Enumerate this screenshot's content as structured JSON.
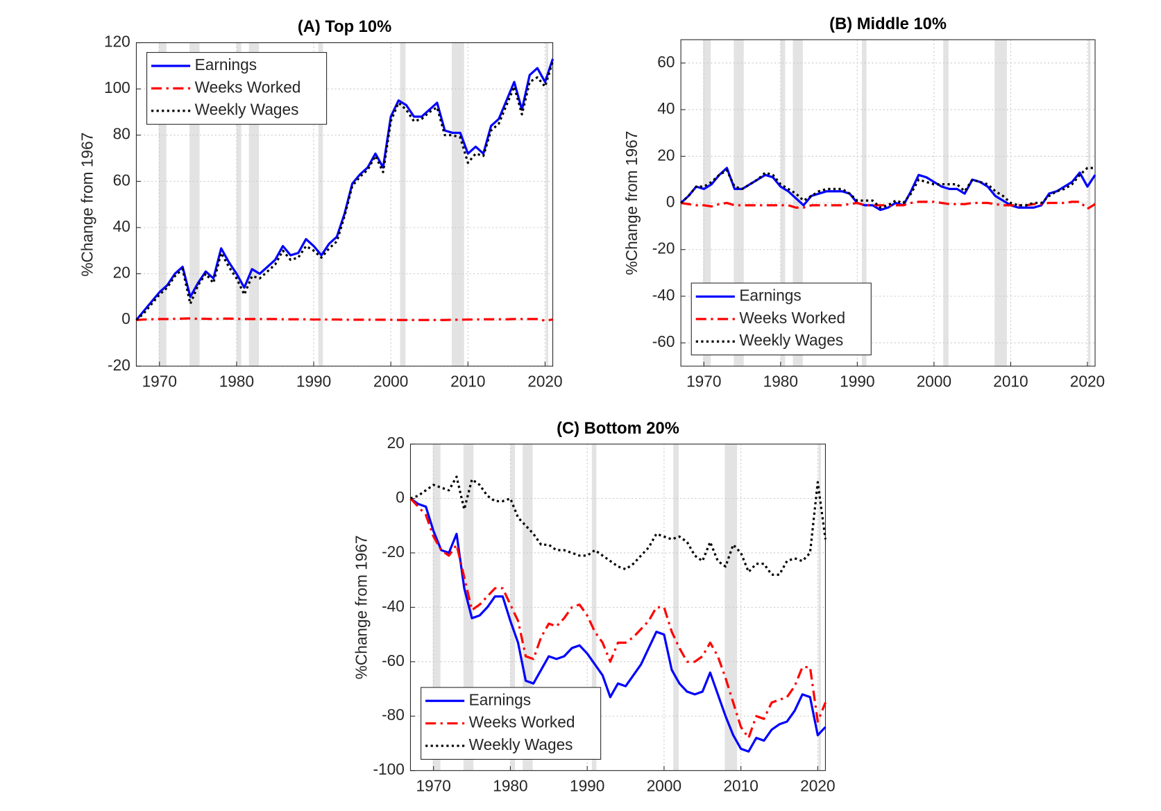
{
  "chart_data": [
    {
      "type": "line",
      "title": "(A) Top 10%",
      "y_label": "%Change from 1967",
      "x": [
        1967,
        1968,
        1969,
        1970,
        1971,
        1972,
        1973,
        1974,
        1975,
        1976,
        1977,
        1978,
        1979,
        1980,
        1981,
        1982,
        1983,
        1984,
        1985,
        1986,
        1987,
        1988,
        1989,
        1990,
        1991,
        1992,
        1993,
        1994,
        1995,
        1996,
        1997,
        1998,
        1999,
        2000,
        2001,
        2002,
        2003,
        2004,
        2005,
        2006,
        2007,
        2008,
        2009,
        2010,
        2011,
        2012,
        2013,
        2014,
        2015,
        2016,
        2017,
        2018,
        2019,
        2020,
        2021
      ],
      "series": [
        {
          "name": "Earnings",
          "color": "#0000ff",
          "style": "solid",
          "values": [
            0,
            4,
            8,
            12,
            15,
            20,
            23,
            10,
            16,
            21,
            18,
            31,
            25,
            20,
            14,
            22,
            20,
            23,
            26,
            32,
            28,
            29,
            35,
            32,
            28,
            33,
            36,
            46,
            59,
            63,
            66,
            72,
            66,
            88,
            95,
            93,
            88,
            88,
            91,
            94,
            82,
            81,
            81,
            72,
            75,
            72,
            84,
            87,
            95,
            103,
            91,
            106,
            109,
            103,
            113
          ]
        },
        {
          "name": "Weeks Worked",
          "color": "#ff0000",
          "style": "dashdot",
          "values": [
            0,
            0.2,
            0.3,
            0.4,
            0.4,
            0.5,
            0.6,
            0.7,
            0.5,
            0.5,
            0.4,
            0.6,
            0.6,
            0.5,
            0.4,
            0.4,
            0.4,
            0.4,
            0.4,
            0.3,
            0.3,
            0.3,
            0.3,
            0.2,
            0.2,
            0.2,
            0.2,
            0.1,
            0.1,
            0.1,
            0.1,
            0.1,
            0.1,
            0.1,
            0,
            0,
            0,
            0,
            0,
            0,
            0,
            0.1,
            0.1,
            0.2,
            0.2,
            0.3,
            0.3,
            0.3,
            0.3,
            0.4,
            0.4,
            0.4,
            0.4,
            -0.3,
            0.2
          ]
        },
        {
          "name": "Weekly Wages",
          "color": "#000000",
          "style": "dotted",
          "values": [
            0,
            3,
            7,
            11,
            14,
            19,
            22,
            7,
            15,
            20,
            16,
            29,
            23,
            18,
            11,
            19,
            18,
            21,
            24,
            30,
            26,
            27,
            32,
            30,
            27,
            31,
            34,
            45,
            58,
            62,
            65,
            71,
            64,
            86,
            94,
            91,
            86,
            87,
            90,
            92,
            80,
            80,
            79,
            68,
            72,
            71,
            82,
            85,
            93,
            101,
            89,
            103,
            105,
            101,
            112
          ]
        }
      ],
      "recessions": [
        [
          1969.9,
          1970.9
        ],
        [
          1973.9,
          1975.2
        ],
        [
          1980,
          1980.6
        ],
        [
          1981.6,
          1982.9
        ],
        [
          1990.6,
          1991.2
        ],
        [
          2001.2,
          2001.9
        ],
        [
          2007.9,
          2009.5
        ],
        [
          2020.1,
          2020.4
        ]
      ],
      "xlim": [
        1967,
        2021
      ],
      "xticks": [
        1970,
        1980,
        1990,
        2000,
        2010,
        2020
      ],
      "ylim": [
        -20,
        120
      ],
      "yticks": [
        -20,
        0,
        20,
        40,
        60,
        80,
        100,
        120
      ],
      "grid": true,
      "legend": "upper left"
    },
    {
      "type": "line",
      "title": "(B) Middle 10%",
      "y_label": "%Change from 1967",
      "x": [
        1967,
        1968,
        1969,
        1970,
        1971,
        1972,
        1973,
        1974,
        1975,
        1976,
        1977,
        1978,
        1979,
        1980,
        1981,
        1982,
        1983,
        1984,
        1985,
        1986,
        1987,
        1988,
        1989,
        1990,
        1991,
        1992,
        1993,
        1994,
        1995,
        1996,
        1997,
        1998,
        1999,
        2000,
        2001,
        2002,
        2003,
        2004,
        2005,
        2006,
        2007,
        2008,
        2009,
        2010,
        2011,
        2012,
        2013,
        2014,
        2015,
        2016,
        2017,
        2018,
        2019,
        2020,
        2021
      ],
      "series": [
        {
          "name": "Earnings",
          "color": "#0000ff",
          "style": "solid",
          "values": [
            0,
            3,
            7,
            6,
            8,
            12,
            15,
            6,
            6,
            8,
            10,
            12,
            11,
            7,
            5,
            2,
            -1,
            3,
            4,
            5,
            5,
            5,
            4,
            0,
            -1,
            -1,
            -3,
            -2,
            0,
            -1,
            5,
            12,
            11,
            9,
            7,
            6,
            6,
            4,
            10,
            9,
            7,
            3,
            1,
            -1,
            -2,
            -2,
            -2,
            -1,
            4,
            5,
            7,
            9,
            13,
            7,
            12
          ]
        },
        {
          "name": "Weeks Worked",
          "color": "#ff0000",
          "style": "dashdot",
          "values": [
            0,
            -0.5,
            -1,
            -1,
            -1.5,
            -0.5,
            0,
            -1,
            -1,
            -1,
            -1,
            -1,
            -1,
            -1,
            -1,
            -2,
            -2,
            -1,
            -1,
            -1,
            -1,
            -1,
            -0.5,
            0,
            -1,
            -1,
            -1,
            -1,
            -1,
            -1,
            0,
            0.5,
            0.5,
            0.5,
            0,
            -0.5,
            -0.5,
            -0.5,
            0,
            0,
            0,
            -0.5,
            -1,
            -1,
            -1,
            -1,
            -0.5,
            -0.5,
            0,
            0,
            0,
            0.5,
            0.5,
            -2.5,
            -0.5
          ]
        },
        {
          "name": "Weekly Wages",
          "color": "#000000",
          "style": "dotted",
          "values": [
            0,
            3,
            7,
            7,
            9,
            12,
            14,
            7,
            6,
            8,
            10,
            13,
            12,
            8,
            6,
            4,
            1,
            3,
            5,
            6,
            6,
            6,
            4,
            1,
            1,
            1,
            -2,
            -1,
            1,
            0,
            4,
            10,
            9,
            8,
            8,
            8,
            8,
            5,
            10,
            9,
            8,
            5,
            3,
            0,
            -1,
            -1,
            0,
            0,
            3,
            5,
            6,
            8,
            12,
            15,
            15
          ]
        }
      ],
      "recessions": [
        [
          1969.9,
          1970.9
        ],
        [
          1973.9,
          1975.2
        ],
        [
          1980,
          1980.6
        ],
        [
          1981.6,
          1982.9
        ],
        [
          1990.6,
          1991.2
        ],
        [
          2001.2,
          2001.9
        ],
        [
          2007.9,
          2009.5
        ],
        [
          2020.1,
          2020.4
        ]
      ],
      "xlim": [
        1967,
        2021
      ],
      "xticks": [
        1970,
        1980,
        1990,
        2000,
        2010,
        2020
      ],
      "ylim": [
        -70,
        70
      ],
      "yticks": [
        -60,
        -40,
        -20,
        0,
        20,
        40,
        60
      ],
      "grid": true,
      "legend": "lower left"
    },
    {
      "type": "line",
      "title": "(C) Bottom 20%",
      "y_label": "%Change from 1967",
      "x": [
        1967,
        1968,
        1969,
        1970,
        1971,
        1972,
        1973,
        1974,
        1975,
        1976,
        1977,
        1978,
        1979,
        1980,
        1981,
        1982,
        1983,
        1984,
        1985,
        1986,
        1987,
        1988,
        1989,
        1990,
        1991,
        1992,
        1993,
        1994,
        1995,
        1996,
        1997,
        1998,
        1999,
        2000,
        2001,
        2002,
        2003,
        2004,
        2005,
        2006,
        2007,
        2008,
        2009,
        2010,
        2011,
        2012,
        2013,
        2014,
        2015,
        2016,
        2017,
        2018,
        2019,
        2020,
        2021
      ],
      "series": [
        {
          "name": "Earnings",
          "color": "#0000ff",
          "style": "solid",
          "values": [
            0,
            -2,
            -3,
            -12,
            -19,
            -20,
            -13,
            -33,
            -44,
            -43,
            -40,
            -36,
            -36,
            -45,
            -53,
            -67,
            -68,
            -63,
            -58,
            -59,
            -58,
            -55,
            -54,
            -57,
            -61,
            -65,
            -73,
            -68,
            -69,
            -65,
            -61,
            -55,
            -49,
            -50,
            -63,
            -68,
            -71,
            -72,
            -71,
            -64,
            -72,
            -80,
            -87,
            -92,
            -93,
            -88,
            -89,
            -85,
            -83,
            -82,
            -78,
            -72,
            -73,
            -87,
            -84
          ]
        },
        {
          "name": "Weeks Worked",
          "color": "#ff0000",
          "style": "dashdot",
          "values": [
            0,
            -3,
            -6,
            -14,
            -19,
            -21,
            -17,
            -29,
            -41,
            -39,
            -36,
            -33,
            -33,
            -39,
            -45,
            -58,
            -59,
            -51,
            -46,
            -47,
            -44,
            -40,
            -39,
            -43,
            -49,
            -53,
            -60,
            -53,
            -53,
            -51,
            -48,
            -45,
            -40,
            -40,
            -49,
            -55,
            -60,
            -60,
            -58,
            -53,
            -58,
            -66,
            -75,
            -84,
            -88,
            -80,
            -81,
            -75,
            -74,
            -73,
            -69,
            -62,
            -62,
            -82,
            -75
          ]
        },
        {
          "name": "Weekly Wages",
          "color": "#000000",
          "style": "dotted",
          "values": [
            0,
            1,
            3,
            5,
            4,
            3,
            8,
            -4,
            7,
            5,
            1,
            -1,
            -1,
            0,
            -7,
            -10,
            -13,
            -17,
            -17,
            -19,
            -19,
            -20,
            -21,
            -21,
            -19,
            -21,
            -23,
            -25,
            -26,
            -24,
            -21,
            -18,
            -13,
            -14,
            -15,
            -14,
            -16,
            -21,
            -23,
            -16,
            -23,
            -25,
            -17,
            -20,
            -27,
            -24,
            -24,
            -28,
            -28,
            -23,
            -22,
            -23,
            -20,
            6,
            -15
          ]
        }
      ],
      "recessions": [
        [
          1969.9,
          1970.9
        ],
        [
          1973.9,
          1975.2
        ],
        [
          1980,
          1980.6
        ],
        [
          1981.6,
          1982.9
        ],
        [
          1990.6,
          1991.2
        ],
        [
          2001.2,
          2001.9
        ],
        [
          2007.9,
          2009.5
        ],
        [
          2020.1,
          2020.4
        ]
      ],
      "xlim": [
        1967,
        2021
      ],
      "xticks": [
        1970,
        1980,
        1990,
        2000,
        2010,
        2020
      ],
      "ylim": [
        -100,
        20
      ],
      "yticks": [
        -100,
        -80,
        -60,
        -40,
        -20,
        0,
        20
      ],
      "grid": true,
      "legend": "lower left"
    }
  ]
}
